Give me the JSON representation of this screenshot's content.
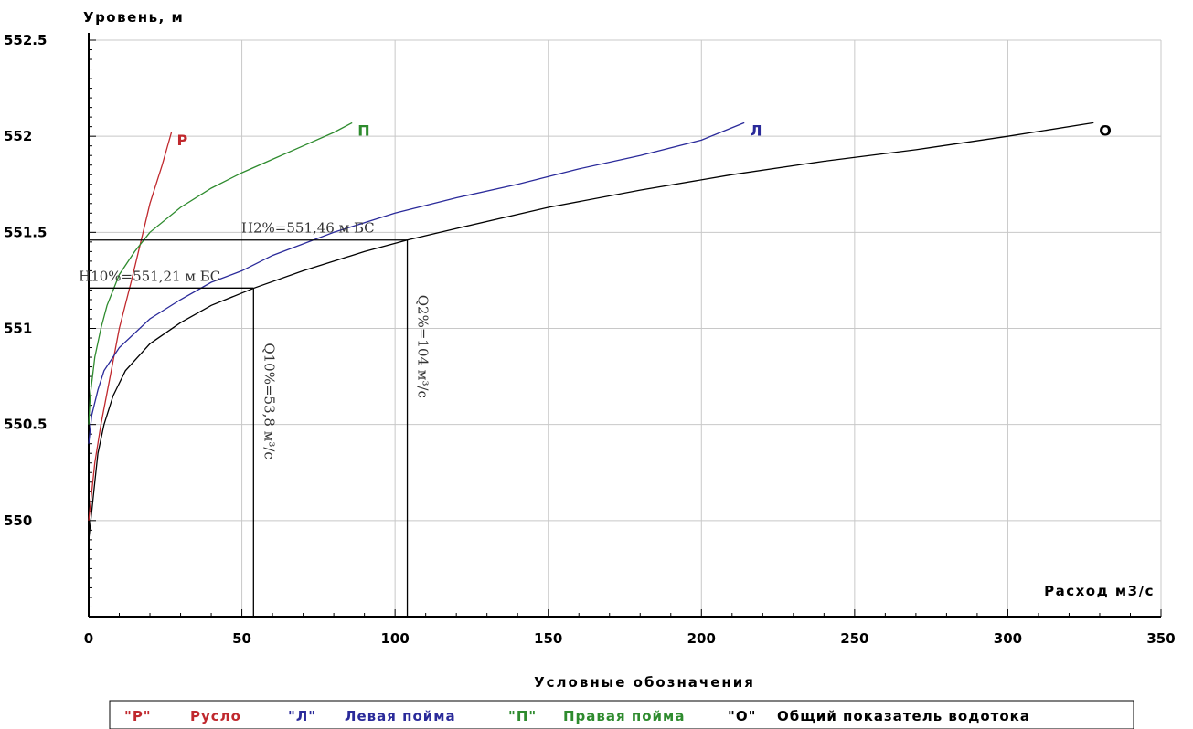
{
  "chart_data": {
    "type": "line",
    "ylabel": "Уровень, м",
    "xlabel": "Расход м3/с",
    "xlim": [
      0,
      350
    ],
    "ylim": [
      549.5,
      552.5
    ],
    "x_ticks": [
      0,
      50,
      100,
      150,
      200,
      250,
      300,
      350
    ],
    "y_ticks": [
      550,
      550.5,
      551,
      551.5,
      552,
      552.5
    ],
    "y_tick_labels": [
      "550",
      "550.5",
      "551",
      "551.5",
      "552",
      "552.5"
    ],
    "grid": true,
    "series": [
      {
        "name": "Р",
        "color": "#c0282d",
        "points": [
          [
            0,
            550.0
          ],
          [
            2,
            550.3
          ],
          [
            4,
            550.5
          ],
          [
            7,
            550.75
          ],
          [
            10,
            551.0
          ],
          [
            14,
            551.25
          ],
          [
            17,
            551.45
          ],
          [
            20,
            551.65
          ],
          [
            24,
            551.85
          ],
          [
            27,
            552.02
          ]
        ]
      },
      {
        "name": "П",
        "color": "#2e8b2e",
        "points": [
          [
            0,
            550.5
          ],
          [
            0.5,
            550.65
          ],
          [
            1,
            550.72
          ],
          [
            2,
            550.85
          ],
          [
            4,
            551.0
          ],
          [
            6,
            551.12
          ],
          [
            10,
            551.28
          ],
          [
            15,
            551.4
          ],
          [
            20,
            551.5
          ],
          [
            30,
            551.63
          ],
          [
            40,
            551.73
          ],
          [
            50,
            551.81
          ],
          [
            60,
            551.88
          ],
          [
            70,
            551.95
          ],
          [
            80,
            552.02
          ],
          [
            86,
            552.07
          ]
        ]
      },
      {
        "name": "Л",
        "color": "#2a2a9a",
        "points": [
          [
            0,
            550.4
          ],
          [
            1,
            550.55
          ],
          [
            3,
            550.68
          ],
          [
            5,
            550.78
          ],
          [
            10,
            550.9
          ],
          [
            20,
            551.05
          ],
          [
            30,
            551.15
          ],
          [
            40,
            551.24
          ],
          [
            50,
            551.3
          ],
          [
            60,
            551.38
          ],
          [
            80,
            551.5
          ],
          [
            100,
            551.6
          ],
          [
            120,
            551.68
          ],
          [
            140,
            551.75
          ],
          [
            160,
            551.83
          ],
          [
            180,
            551.9
          ],
          [
            200,
            551.98
          ],
          [
            214,
            552.07
          ]
        ]
      },
      {
        "name": "О",
        "color": "#000000",
        "points": [
          [
            0,
            549.9
          ],
          [
            1,
            550.05
          ],
          [
            2,
            550.2
          ],
          [
            3,
            550.35
          ],
          [
            5,
            550.5
          ],
          [
            8,
            550.65
          ],
          [
            12,
            550.78
          ],
          [
            20,
            550.92
          ],
          [
            30,
            551.03
          ],
          [
            40,
            551.12
          ],
          [
            54,
            551.21
          ],
          [
            70,
            551.3
          ],
          [
            90,
            551.4
          ],
          [
            104,
            551.46
          ],
          [
            120,
            551.52
          ],
          [
            150,
            551.63
          ],
          [
            180,
            551.72
          ],
          [
            210,
            551.8
          ],
          [
            240,
            551.87
          ],
          [
            270,
            551.93
          ],
          [
            300,
            552.0
          ],
          [
            328,
            552.07
          ]
        ]
      }
    ],
    "annotations": [
      {
        "text": "H2%=551,46 м БС",
        "h_level": 551.46,
        "q": 104,
        "q_label": "Q2%=104 м³/с"
      },
      {
        "text": "H10%=551,21 м БС",
        "h_level": 551.21,
        "q": 53.8,
        "q_label": "Q10%=53,8 м³/с"
      }
    ]
  },
  "legend": {
    "title": "Условные обозначения",
    "items": [
      {
        "code": "\"Р\"",
        "label": "Русло",
        "color": "#c0282d"
      },
      {
        "code": "\"Л\"",
        "label": "Левая пойма",
        "color": "#2a2a9a"
      },
      {
        "code": "\"П\"",
        "label": "Правая пойма",
        "color": "#2e8b2e"
      },
      {
        "code": "\"О\"",
        "label": "Общий показатель водотока",
        "color": "#000000"
      }
    ]
  }
}
